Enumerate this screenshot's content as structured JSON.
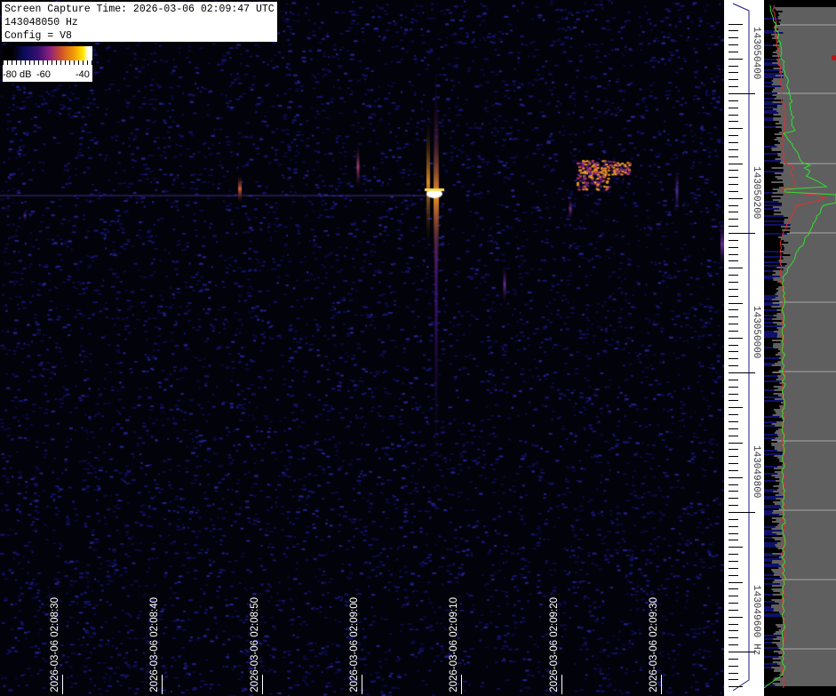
{
  "info": {
    "capture_time": "Screen Capture Time: 2026-03-06 02:09:47 UTC",
    "frequency": "143048050 Hz",
    "config": "Config = V8"
  },
  "colorbar": {
    "labels": [
      "-80 dB",
      "-60",
      "-40"
    ],
    "range_db": [
      -80,
      -35
    ],
    "colormap": [
      "#000000",
      "#0c0c60",
      "#8a1f80",
      "#f5a000",
      "#ffe800",
      "#ffffff"
    ]
  },
  "chart_data": {
    "type": "heatmap",
    "title": "",
    "x_axis": {
      "tick_labels": [
        "2026-03-06 02:08:30",
        "2026-03-06 02:08:40",
        "2026-03-06 02:08:50",
        "2026-03-06 02:09:00",
        "2026-03-06 02:09:10",
        "2026-03-06 02:09:20",
        "2026-03-06 02:09:30"
      ]
    },
    "y_axis": {
      "tick_labels": [
        "143050400",
        "143050200",
        "143050000",
        "143049800",
        "143049600 Hz"
      ],
      "tick_values_hz": [
        143050400,
        143050200,
        143050000,
        143049800,
        143049600
      ],
      "minor_step_hz": 10
    },
    "spectrum_panel": {
      "traces": [
        {
          "color": "#e03030"
        },
        {
          "color": "#30e030"
        }
      ],
      "peak_frequency_hz": 143050250
    },
    "colors": {
      "background": "#02020a",
      "noise": "#141470",
      "ruler": "#ffffff",
      "spectrum_bg": "#5f5f5f"
    }
  }
}
